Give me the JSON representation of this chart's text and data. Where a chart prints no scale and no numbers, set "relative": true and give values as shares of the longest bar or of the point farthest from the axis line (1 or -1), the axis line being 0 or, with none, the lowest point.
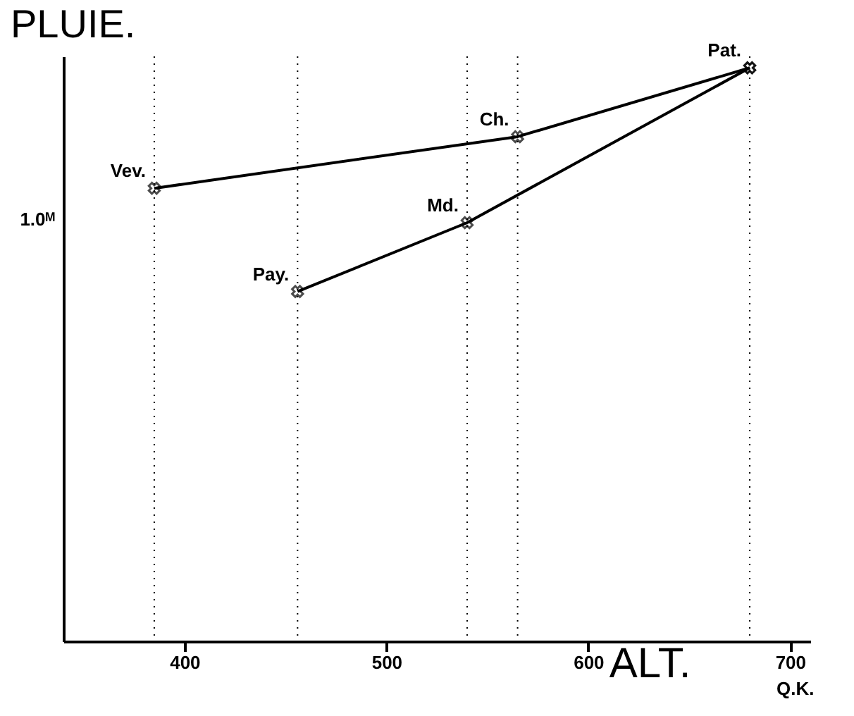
{
  "chart_data": {
    "type": "line",
    "relative": true,
    "xlabel": "ALT.",
    "ylabel": "PLUIE.",
    "xlim": [
      340,
      710
    ],
    "xticks": [
      400,
      500,
      600,
      700
    ],
    "marker": "cross",
    "line_style": "solid",
    "series": [
      {
        "color": "#000000",
        "x": [
          385,
          565,
          680
        ],
        "values": [
          0.79,
          0.88,
          1
        ]
      },
      {
        "color": "#000000",
        "x": [
          456,
          540,
          680
        ],
        "values": [
          0.61,
          0.73,
          1
        ]
      }
    ],
    "ref_lines": [
      {
        "axis": "x",
        "value": 385,
        "line_style": "dotted",
        "color": "#000000"
      },
      {
        "axis": "x",
        "value": 456,
        "line_style": "dotted",
        "color": "#000000"
      },
      {
        "axis": "x",
        "value": 540,
        "line_style": "dotted",
        "color": "#000000"
      },
      {
        "axis": "x",
        "value": 565,
        "line_style": "dotted",
        "color": "#000000"
      },
      {
        "axis": "x",
        "value": 680,
        "line_style": "dotted",
        "color": "#000000"
      }
    ],
    "annotations": [
      {
        "text": "Vev.",
        "x": 385,
        "y": 0.79
      },
      {
        "text": "Ch.",
        "x": 565,
        "y": 0.88
      },
      {
        "text": "Pat.",
        "x": 680,
        "y": 1
      },
      {
        "text": "Md.",
        "x": 540,
        "y": 0.73
      },
      {
        "text": "Pay.",
        "x": 456,
        "y": 0.61
      },
      "1.0ᴹ",
      "Q.K."
    ]
  }
}
